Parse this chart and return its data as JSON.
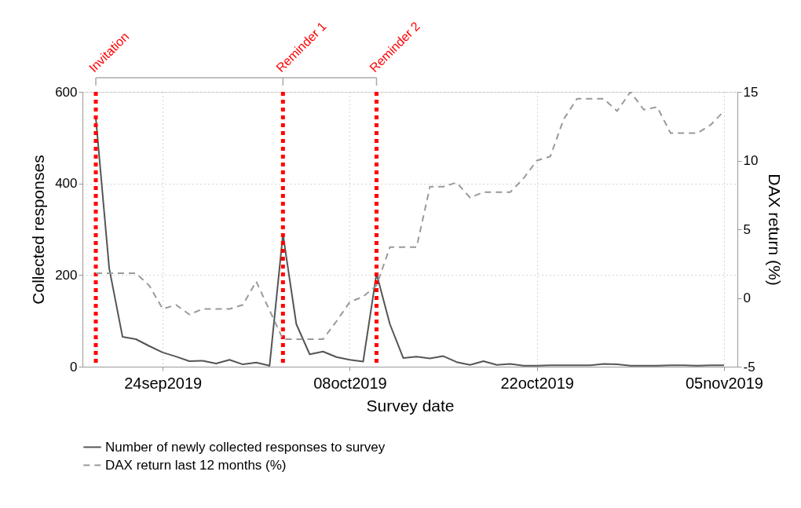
{
  "chart_data": {
    "type": "line",
    "xlabel": "Survey date",
    "ylabel": "Collected responses",
    "y2label": "DAX return (%)",
    "x": [
      "2019-09-19",
      "2019-09-20",
      "2019-09-21",
      "2019-09-22",
      "2019-09-23",
      "2019-09-24",
      "2019-09-25",
      "2019-09-26",
      "2019-09-27",
      "2019-09-28",
      "2019-09-29",
      "2019-09-30",
      "2019-10-01",
      "2019-10-02",
      "2019-10-03",
      "2019-10-04",
      "2019-10-05",
      "2019-10-06",
      "2019-10-07",
      "2019-10-08",
      "2019-10-09",
      "2019-10-10",
      "2019-10-11",
      "2019-10-12",
      "2019-10-13",
      "2019-10-14",
      "2019-10-15",
      "2019-10-16",
      "2019-10-17",
      "2019-10-18",
      "2019-10-19",
      "2019-10-20",
      "2019-10-21",
      "2019-10-22",
      "2019-10-23",
      "2019-10-24",
      "2019-10-25",
      "2019-10-26",
      "2019-10-27",
      "2019-10-28",
      "2019-10-29",
      "2019-10-30",
      "2019-10-31",
      "2019-11-01",
      "2019-11-02",
      "2019-11-03",
      "2019-11-04",
      "2019-11-05"
    ],
    "series": [
      {
        "name": "Number of newly collected responses to survey",
        "color": "#555555",
        "line_style": "solid",
        "values": [
          543,
          215,
          65,
          60,
          45,
          31,
          22,
          12,
          13,
          7,
          15,
          5,
          9,
          2,
          289,
          93,
          27,
          33,
          21,
          15,
          11,
          203,
          93,
          19,
          22,
          18,
          23,
          10,
          4,
          12,
          4,
          6,
          2,
          2,
          3,
          3,
          3,
          3,
          6,
          5,
          2,
          2,
          2,
          3,
          3,
          2,
          3,
          3
        ]
      },
      {
        "name": "DAX return last 12 months (%)",
        "color": "#999999",
        "line_style": "dashed",
        "axis": "y2",
        "values": [
          1.8,
          1.8,
          1.8,
          1.8,
          0.9,
          -0.8,
          -0.5,
          -1.2,
          -0.8,
          -0.8,
          -0.8,
          -0.5,
          1.2,
          -0.9,
          -3.0,
          -3.0,
          -3.0,
          -3.0,
          -1.7,
          -0.3,
          0.1,
          0.9,
          3.7,
          3.7,
          3.7,
          8.1,
          8.1,
          8.4,
          7.3,
          7.7,
          7.7,
          7.7,
          8.7,
          10.0,
          10.3,
          13.0,
          14.5,
          14.5,
          14.5,
          13.6,
          15.0,
          13.7,
          13.9,
          12.0,
          12.0,
          12.0,
          12.6,
          13.6
        ]
      }
    ],
    "xlim": [
      "2019-09-18",
      "2019-11-06"
    ],
    "xticks": [
      {
        "value": "2019-09-24",
        "label": "24sep2019"
      },
      {
        "value": "2019-10-08",
        "label": "08oct2019"
      },
      {
        "value": "2019-10-22",
        "label": "22oct2019"
      },
      {
        "value": "2019-11-05",
        "label": "05nov2019"
      }
    ],
    "ylim": [
      0,
      600
    ],
    "yticks": [
      0,
      200,
      400,
      600
    ],
    "y2lim": [
      -5,
      15
    ],
    "y2ticks": [
      -5,
      0,
      5,
      10,
      15
    ],
    "ref_lines": [
      {
        "axis": "x",
        "value": "2019-09-19",
        "label": "Invitation",
        "color": "#ff0000",
        "line_style": "dotted"
      },
      {
        "axis": "x",
        "value": "2019-10-03",
        "label": "Reminder 1",
        "color": "#ff0000",
        "line_style": "dotted"
      },
      {
        "axis": "x",
        "value": "2019-10-10",
        "label": "Reminder 2",
        "color": "#ff0000",
        "line_style": "dotted"
      }
    ],
    "grid": true,
    "legend": "bottom"
  }
}
